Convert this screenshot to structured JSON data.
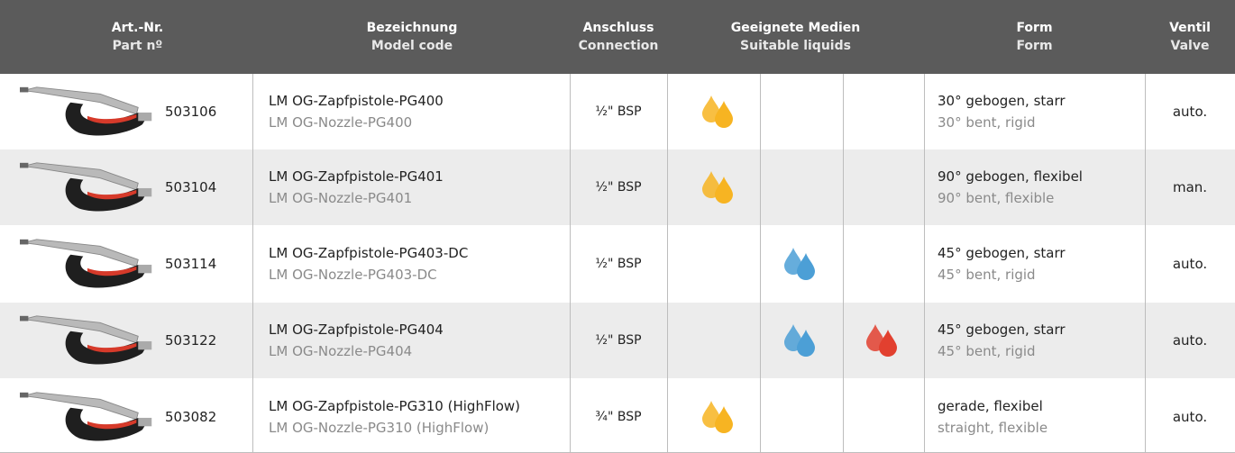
{
  "header": {
    "columns": [
      {
        "de": "Art.-Nr.",
        "en": "Part nº"
      },
      {
        "de": "Bezeichnung",
        "en": "Model code"
      },
      {
        "de": "Anschluss",
        "en": "Connection"
      },
      {
        "de": "Geeignete Medien",
        "en": "Suitable liquids"
      },
      {
        "de": "Form",
        "en": "Form"
      },
      {
        "de": "Ventil",
        "en": "Valve"
      }
    ]
  },
  "rows": [
    {
      "part": "503106",
      "name_de": "LM OG-Zapfpistole-PG400",
      "name_en": "LM OG-Nozzle-PG400",
      "connection": "½\" BSP",
      "form_de": "30° gebogen, starr",
      "form_en": "30° bent, rigid",
      "valve": "auto."
    },
    {
      "part": "503104",
      "name_de": "LM OG-Zapfpistole-PG401",
      "name_en": "LM OG-Nozzle-PG401",
      "connection": "½\" BSP",
      "form_de": "90° gebogen, flexibel",
      "form_en": "90° bent, flexible",
      "valve": "man."
    },
    {
      "part": "503114",
      "name_de": "LM OG-Zapfpistole-PG403-DC",
      "name_en": "LM OG-Nozzle-PG403-DC",
      "connection": "½\" BSP",
      "form_de": "45° gebogen, starr",
      "form_en": "45° bent, rigid",
      "valve": "auto."
    },
    {
      "part": "503122",
      "name_de": "LM OG-Zapfpistole-PG404",
      "name_en": "LM OG-Nozzle-PG404",
      "connection": "½\" BSP",
      "form_de": "45° gebogen, starr",
      "form_en": "45° bent, rigid",
      "valve": "auto."
    },
    {
      "part": "503082",
      "name_de": "LM OG-Zapfpistole-PG310 (HighFlow)",
      "name_en": "LM OG-Nozzle-PG310 (HighFlow)",
      "connection": "¾\" BSP",
      "form_de": "gerade, flexibel",
      "form_en": "straight, flexible",
      "valve": "auto."
    }
  ]
}
